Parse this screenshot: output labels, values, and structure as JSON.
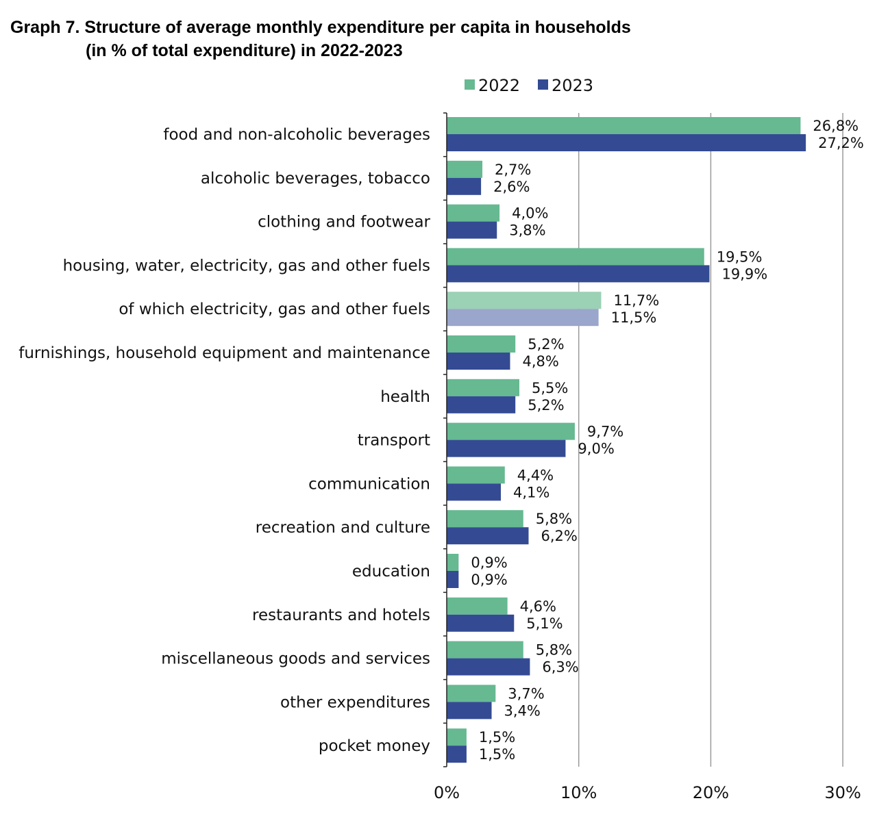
{
  "header": {
    "title_line1": "Graph 7. Structure of average monthly expenditure per capita in households",
    "title_line2": "(in % of total expenditure) in 2022-2023"
  },
  "chart_data": {
    "type": "bar",
    "orientation": "horizontal",
    "title": "Graph 7. Structure of average monthly expenditure per capita in households (in % of total expenditure) in 2022-2023",
    "categories": [
      "food and non-alcoholic beverages",
      "alcoholic beverages, tobacco",
      "clothing and footwear",
      "housing, water, electricity, gas and other fuels",
      "of which electricity, gas and other fuels",
      "furnishings, household equipment and maintenance",
      "health",
      "transport",
      "communication",
      "recreation and culture",
      "education",
      "restaurants and hotels",
      "miscellaneous goods and services",
      "other expenditures",
      "pocket money"
    ],
    "series": [
      {
        "name": "2022",
        "color": "#66b991",
        "values": [
          26.8,
          2.7,
          4.0,
          19.5,
          11.7,
          5.2,
          5.5,
          9.7,
          4.4,
          5.8,
          0.9,
          4.6,
          5.8,
          3.7,
          1.5
        ],
        "labels": [
          "26,8%",
          "2,7%",
          "4,0%",
          "19,5%",
          "11,7%",
          "5,2%",
          "5,5%",
          "9,7%",
          "4,4%",
          "5,8%",
          "0,9%",
          "4,6%",
          "5,8%",
          "3,7%",
          "1,5%"
        ]
      },
      {
        "name": "2023",
        "color": "#344b93",
        "values": [
          27.2,
          2.6,
          3.8,
          19.9,
          11.5,
          4.8,
          5.2,
          9.0,
          4.1,
          6.2,
          0.9,
          5.1,
          6.3,
          3.4,
          1.5
        ],
        "labels": [
          "27,2%",
          "2,6%",
          "3,8%",
          "19,9%",
          "11,5%",
          "4,8%",
          "5,2%",
          "9,0%",
          "4,1%",
          "6,2%",
          "0,9%",
          "5,1%",
          "6,3%",
          "3,4%",
          "1,5%"
        ]
      }
    ],
    "highlight_category_index": 4,
    "highlight_colors": {
      "2022": "#9bd1b5",
      "2023": "#9aa6cb"
    },
    "xlim": [
      0,
      30
    ],
    "xticks": [
      0,
      10,
      20,
      30
    ],
    "xtick_labels": [
      "0%",
      "10%",
      "20%",
      "30%"
    ],
    "grid": "vertical",
    "legend_position": "top",
    "legend": [
      {
        "label": "2022",
        "color": "#66b991"
      },
      {
        "label": "2023",
        "color": "#344b93"
      }
    ]
  }
}
